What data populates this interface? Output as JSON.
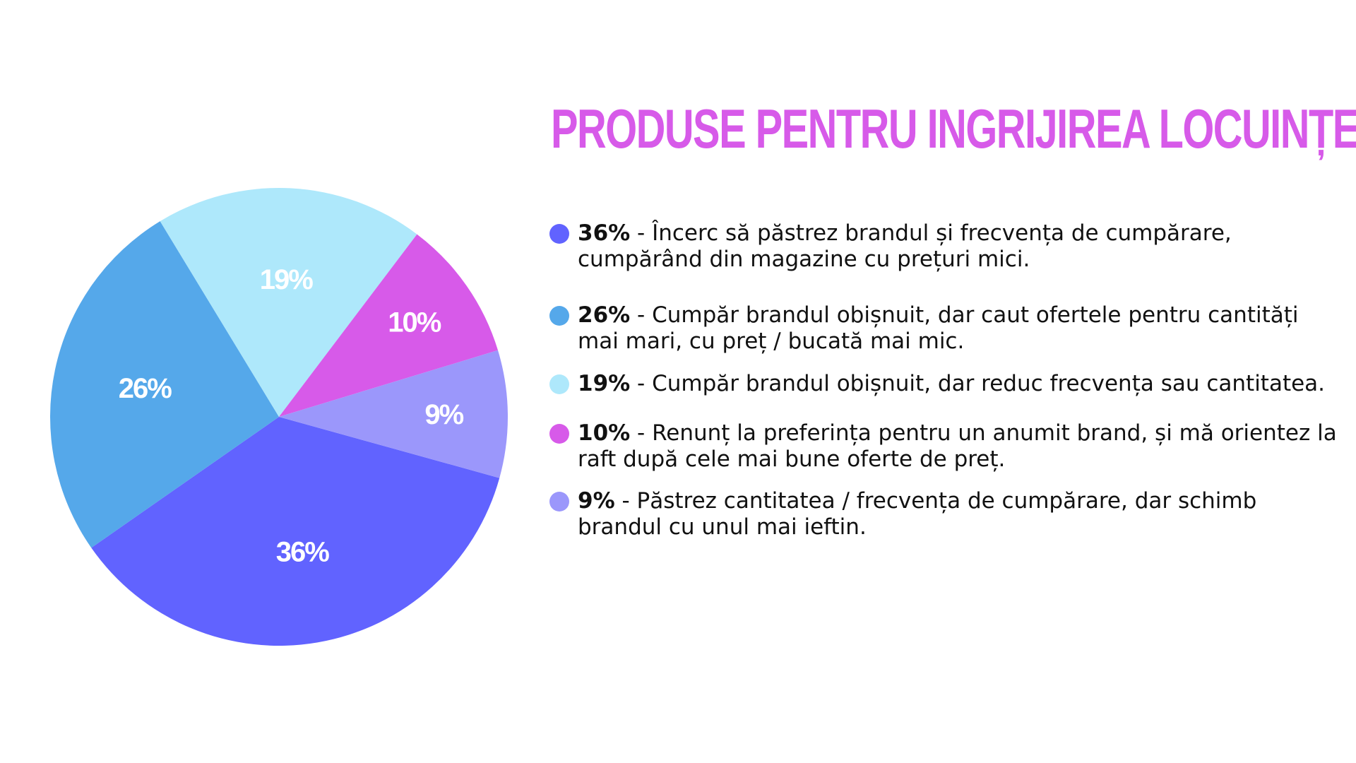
{
  "title": "PRODUSE PENTRU INGRIJIREA LOCUINȚEI",
  "chart_data": {
    "type": "pie",
    "title": "PRODUSE PENTRU INGRIJIREA LOCUINȚEI",
    "slices": [
      {
        "value": 36,
        "label": "36%",
        "color": "#6163ff",
        "legend_pct": "36%",
        "legend_text": " - Încerc să păstrez brandul și frecvența de cumpărare, cumpărând din magazine cu prețuri mici."
      },
      {
        "value": 26,
        "label": "26%",
        "color": "#55a8ea",
        "legend_pct": "26%",
        "legend_text": " - Cumpăr brandul obișnuit, dar caut ofertele pentru cantități mai mari, cu preț / bucată mai mic."
      },
      {
        "value": 19,
        "label": "19%",
        "color": "#aee8fb",
        "legend_pct": "19%",
        "legend_text": " - Cumpăr brandul obișnuit, dar reduc frecvența sau cantitatea."
      },
      {
        "value": 10,
        "label": "10%",
        "color": "#d75ae9",
        "legend_pct": "10%",
        "legend_text": " - Renunț la preferința pentru un anumit brand, și mă orientez la raft după cele mai bune oferte de preț."
      },
      {
        "value": 9,
        "label": "9%",
        "color": "#9b97fb",
        "legend_pct": "9%",
        "legend_text": " - Păstrez cantitatea / frecvența de cumpărare, dar schimb brandul cu unul mai ieftin."
      }
    ],
    "legend_placement": "right"
  },
  "legend": [
    {
      "pct": "36%",
      "text": " - Încerc să păstrez brandul și frecvența de cumpărare, cumpărând din magazine cu prețuri mici.",
      "color": "#6163ff"
    },
    {
      "pct": "26%",
      "text": " - Cumpăr brandul obișnuit, dar caut ofertele pentru cantități mai mari, cu preț / bucată mai mic.",
      "color": "#55a8ea"
    },
    {
      "pct": "19%",
      "text": " - Cumpăr brandul obișnuit, dar reduc frecvența sau cantitatea.",
      "color": "#aee8fb"
    },
    {
      "pct": "10%",
      "text": " - Renunț la preferința pentru un anumit brand, și mă orientez la raft după cele mai bune oferte de preț.",
      "color": "#d75ae9"
    },
    {
      "pct": "9%",
      "text": " - Păstrez cantitatea / frecvența de cumpărare, dar schimb brandul cu unul mai ieftin.",
      "color": "#9b97fb"
    }
  ]
}
